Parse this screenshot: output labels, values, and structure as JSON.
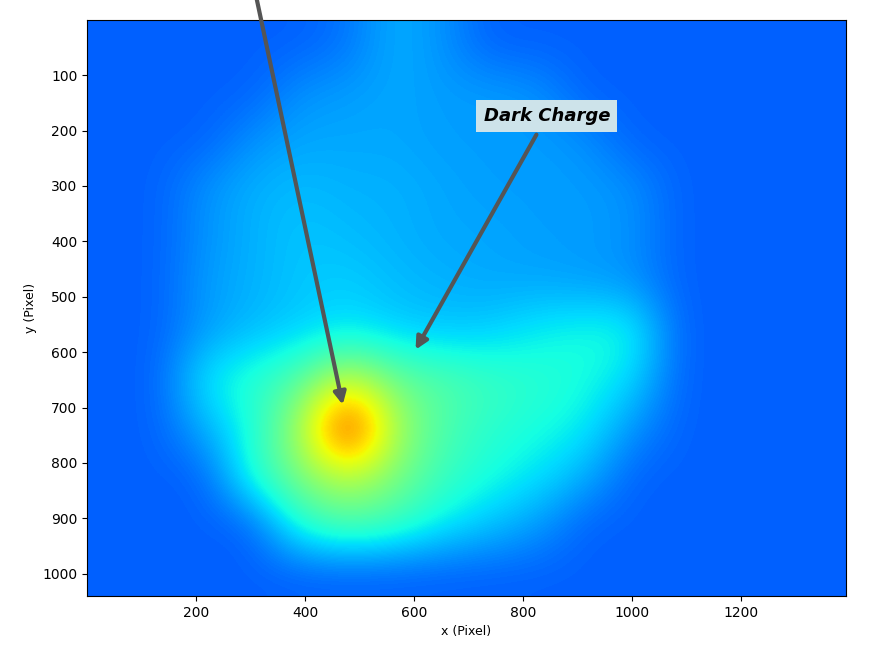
{
  "chart_data": {
    "type": "heatmap",
    "x_label": "x (Pixel)",
    "y_label": "y (Pixel)",
    "xlim": [
      0,
      1392
    ],
    "ylim": [
      1040,
      0
    ],
    "xticks": [
      200,
      400,
      600,
      800,
      1000,
      1200
    ],
    "yticks": [
      100,
      200,
      300,
      400,
      500,
      600,
      700,
      800,
      900,
      1000
    ],
    "color": "jet",
    "color_range": [
      0,
      100
    ],
    "annotations": [
      {
        "text": "Dark Charge",
        "x": 600,
        "y": 600
      }
    ],
    "arrows": [
      {
        "x": 470,
        "y": 700
      }
    ],
    "cells": [
      [
        22,
        22,
        22,
        22,
        22,
        24,
        30,
        27,
        22,
        22,
        22,
        22,
        22,
        22,
        22,
        22
      ],
      [
        22,
        22,
        22,
        22,
        27,
        28,
        29,
        28,
        28,
        27,
        22,
        22,
        22,
        22,
        22,
        22
      ],
      [
        22,
        22,
        22,
        27,
        29,
        29,
        29,
        28,
        28,
        28,
        27,
        22,
        22,
        22,
        22,
        22
      ],
      [
        22,
        22,
        27,
        30,
        31,
        30,
        30,
        29,
        28,
        28,
        28,
        27,
        22,
        22,
        22,
        22
      ],
      [
        22,
        22,
        27,
        30,
        32,
        31,
        30,
        29,
        29,
        28,
        28,
        27,
        22,
        22,
        22,
        22
      ],
      [
        22,
        22,
        28,
        30,
        32,
        33,
        31,
        30,
        29,
        29,
        28,
        27,
        22,
        22,
        22,
        22
      ],
      [
        22,
        22,
        28,
        31,
        33,
        35,
        33,
        32,
        33,
        36,
        38,
        38,
        22,
        22,
        22,
        22
      ],
      [
        22,
        22,
        36,
        40,
        45,
        60,
        48,
        45,
        42,
        40,
        38,
        34,
        22,
        22,
        22,
        22
      ],
      [
        22,
        22,
        30,
        38,
        55,
        92,
        55,
        44,
        40,
        38,
        36,
        27,
        22,
        22,
        22,
        22
      ],
      [
        22,
        22,
        22,
        40,
        50,
        58,
        50,
        42,
        38,
        35,
        30,
        22,
        22,
        22,
        22,
        22
      ],
      [
        22,
        22,
        22,
        22,
        40,
        45,
        42,
        36,
        32,
        28,
        22,
        22,
        22,
        22,
        22,
        22
      ],
      [
        22,
        22,
        22,
        22,
        22,
        22,
        22,
        22,
        22,
        22,
        22,
        22,
        22,
        22,
        22,
        22
      ]
    ]
  }
}
